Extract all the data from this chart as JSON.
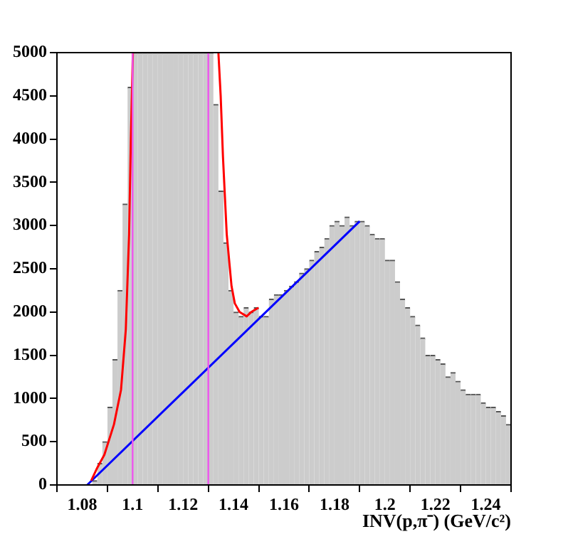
{
  "chart_data": {
    "type": "histogram",
    "xlabel": "INV(p,π⁻) (GeV/c²)",
    "bins": [
      1.07,
      1.072,
      1.074,
      1.076,
      1.078,
      1.08,
      1.082,
      1.084,
      1.086,
      1.088,
      1.09,
      1.092,
      1.094,
      1.096,
      1.098,
      1.1,
      1.102,
      1.104,
      1.106,
      1.108,
      1.11,
      1.112,
      1.114,
      1.116,
      1.118,
      1.12,
      1.122,
      1.124,
      1.126,
      1.128,
      1.13,
      1.132,
      1.134,
      1.136,
      1.138,
      1.14,
      1.142,
      1.144,
      1.146,
      1.148,
      1.15,
      1.152,
      1.154,
      1.156,
      1.158,
      1.16,
      1.162,
      1.164,
      1.166,
      1.168,
      1.17,
      1.172,
      1.174,
      1.176,
      1.178,
      1.18,
      1.182,
      1.184,
      1.186,
      1.188,
      1.19,
      1.192,
      1.194,
      1.196,
      1.198,
      1.2,
      1.202,
      1.204,
      1.206,
      1.208,
      1.21,
      1.212,
      1.214,
      1.216,
      1.218,
      1.22,
      1.222,
      1.224,
      1.226,
      1.228,
      1.23,
      1.232,
      1.234,
      1.236,
      1.238,
      1.24,
      1.242,
      1.244,
      1.246,
      1.248,
      1.25
    ],
    "values": [
      0,
      0,
      0,
      0,
      0,
      0,
      0,
      50,
      250,
      500,
      900,
      1450,
      2250,
      3250,
      4600,
      5000,
      5000,
      5000,
      5000,
      5000,
      5000,
      5000,
      5000,
      5000,
      5000,
      5000,
      5000,
      5000,
      5000,
      5000,
      5000,
      4400,
      3400,
      2800,
      2250,
      2000,
      1950,
      2050,
      2000,
      2050,
      1950,
      1950,
      2150,
      2200,
      2200,
      2250,
      2300,
      2350,
      2450,
      2500,
      2600,
      2700,
      2750,
      2850,
      3000,
      3050,
      3000,
      3100,
      3000,
      3050,
      3050,
      3000,
      2900,
      2850,
      2850,
      2600,
      2600,
      2350,
      2150,
      2050,
      1950,
      1850,
      1700,
      1500,
      1500,
      1450,
      1400,
      1250,
      1300,
      1200,
      1100,
      1050,
      1050,
      1050,
      950,
      900,
      900,
      850,
      800,
      700
    ],
    "color": "#cccccc",
    "series": [
      {
        "type": "line",
        "color": "#ff0000",
        "x": [
          1.0836,
          1.086,
          1.0888,
          1.0926,
          1.0954,
          1.0973,
          1.0986,
          1.0993,
          1.1001
        ],
        "values": [
          50,
          200,
          350,
          700,
          1100,
          1800,
          2900,
          4000,
          5000
        ]
      },
      {
        "type": "line",
        "color": "#ff0000",
        "x": [
          1.134,
          1.1349,
          1.1358,
          1.1373,
          1.1392,
          1.1405,
          1.1424,
          1.1452,
          1.147,
          1.1499
        ],
        "values": [
          5000,
          4500,
          3800,
          2900,
          2300,
          2100,
          2000,
          1950,
          2000,
          2050
        ]
      },
      {
        "type": "line",
        "color": "#0000ff",
        "x": [
          1.082,
          1.19
        ],
        "values": [
          0,
          3050
        ]
      }
    ],
    "ref_lines": [
      {
        "axis": "x",
        "value": 1.1,
        "color": "#ee55ee"
      },
      {
        "axis": "x",
        "value": 1.13,
        "color": "#ee55ee"
      }
    ],
    "xlim": [
      1.07,
      1.25
    ],
    "xticks": [
      1.08,
      1.1,
      1.12,
      1.14,
      1.16,
      1.18,
      1.2,
      1.22,
      1.24
    ],
    "ylim": [
      0,
      5000
    ],
    "yticks": [
      0,
      500,
      1000,
      1500,
      2000,
      2500,
      3000,
      3500,
      4000,
      4500,
      5000
    ],
    "grid": false,
    "legend": false
  }
}
